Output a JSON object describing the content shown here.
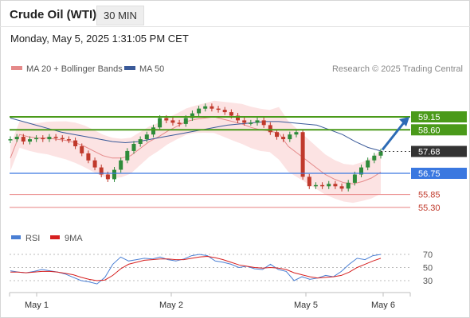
{
  "header": {
    "title": "Crude Oil (WTI)",
    "timeframe": "30 MIN",
    "datetime": "Monday, May 5, 2025 1:31:05 PM CET"
  },
  "legend": {
    "bollinger": "MA 20 + Bollinger Bands",
    "ma50": "MA 50",
    "credit": "Research © 2025 Trading Central",
    "rsi": "RSI",
    "rsi_ma": "9MA"
  },
  "colors": {
    "resistance": "#4a9a1a",
    "support": "#3a78e0",
    "target_low": "#e88080",
    "price_tag": "#333333",
    "arrow": "#2d6bb5",
    "bull_candle": "#2e8b3a",
    "bear_candle": "#c0392b",
    "band_fill": "#fbd9d9",
    "ma20": "#e58a8a",
    "ma50": "#3a5a99"
  },
  "chart_data": [
    {
      "type": "line",
      "name": "price",
      "x_ticks": [
        "May 1",
        "May 2",
        "May 5",
        "May 6"
      ],
      "ylim": [
        54.8,
        59.8
      ],
      "levels": [
        {
          "label": "59.15",
          "value": 59.15,
          "kind": "resistance"
        },
        {
          "label": "58.60",
          "value": 58.6,
          "kind": "resistance"
        },
        {
          "label": "57.68",
          "value": 57.68,
          "kind": "last-price"
        },
        {
          "label": "56.75",
          "value": 56.75,
          "kind": "support"
        },
        {
          "label": "55.85",
          "value": 55.85,
          "kind": "target"
        },
        {
          "label": "55.30",
          "value": 55.3,
          "kind": "target"
        }
      ],
      "close": [
        58.2,
        58.3,
        58.1,
        58.2,
        58.25,
        58.2,
        58.3,
        58.25,
        58.2,
        58.15,
        57.9,
        57.6,
        57.3,
        57.0,
        56.7,
        56.5,
        56.9,
        57.3,
        57.7,
        58.0,
        58.2,
        58.4,
        58.7,
        59.1,
        59.0,
        58.9,
        58.85,
        59.1,
        59.3,
        59.5,
        59.6,
        59.5,
        59.45,
        59.35,
        59.2,
        59.0,
        58.9,
        58.9,
        59.0,
        58.8,
        58.5,
        58.3,
        58.2,
        58.4,
        58.5,
        56.6,
        56.2,
        56.25,
        56.2,
        56.3,
        56.2,
        56.1,
        56.35,
        56.7,
        57.0,
        57.3,
        57.5,
        57.68
      ],
      "ma20": [
        57.4,
        58.4,
        58.3,
        58.25,
        58.25,
        58.2,
        58.15,
        58.05,
        57.9,
        57.7,
        57.5,
        57.4,
        57.4,
        57.5,
        57.8,
        58.1,
        58.3,
        58.55,
        58.75,
        58.95,
        59.05,
        59.1,
        59.15,
        59.05,
        58.95,
        58.85,
        58.7,
        58.6,
        58.55,
        58.45,
        57.9,
        57.6,
        57.3,
        57.0,
        56.7,
        56.5,
        56.35,
        56.3,
        56.4,
        56.55,
        56.8
      ],
      "ma50": [
        59.1,
        58.95,
        58.8,
        58.65,
        58.5,
        58.4,
        58.3,
        58.2,
        58.1,
        58.05,
        58.1,
        58.2,
        58.3,
        58.4,
        58.5,
        58.6,
        58.7,
        58.8,
        58.85,
        58.9,
        58.95,
        58.95,
        58.9,
        58.85,
        58.8,
        58.6,
        58.4,
        58.1,
        57.85,
        57.7
      ]
    },
    {
      "type": "line",
      "name": "RSI",
      "ylim": [
        20,
        80
      ],
      "y_ticks": [
        "70",
        "50",
        "30"
      ],
      "rsi": [
        45,
        43,
        42,
        44,
        47,
        45,
        43,
        40,
        35,
        30,
        28,
        25,
        35,
        55,
        66,
        60,
        62,
        64,
        63,
        66,
        62,
        60,
        63,
        68,
        70,
        68,
        60,
        58,
        55,
        50,
        52,
        48,
        47,
        55,
        47,
        44,
        30,
        36,
        32,
        34,
        38,
        36,
        44,
        55,
        64,
        62,
        68,
        70
      ],
      "rsi_ma": [
        43,
        43,
        42,
        43,
        44,
        44,
        43,
        41,
        39,
        35,
        32,
        30,
        31,
        38,
        48,
        55,
        58,
        61,
        62,
        63,
        63,
        62,
        62,
        64,
        66,
        67,
        65,
        62,
        58,
        54,
        52,
        50,
        49,
        50,
        49,
        47,
        42,
        39,
        36,
        34,
        35,
        36,
        38,
        43,
        50,
        55,
        60,
        64
      ]
    }
  ]
}
